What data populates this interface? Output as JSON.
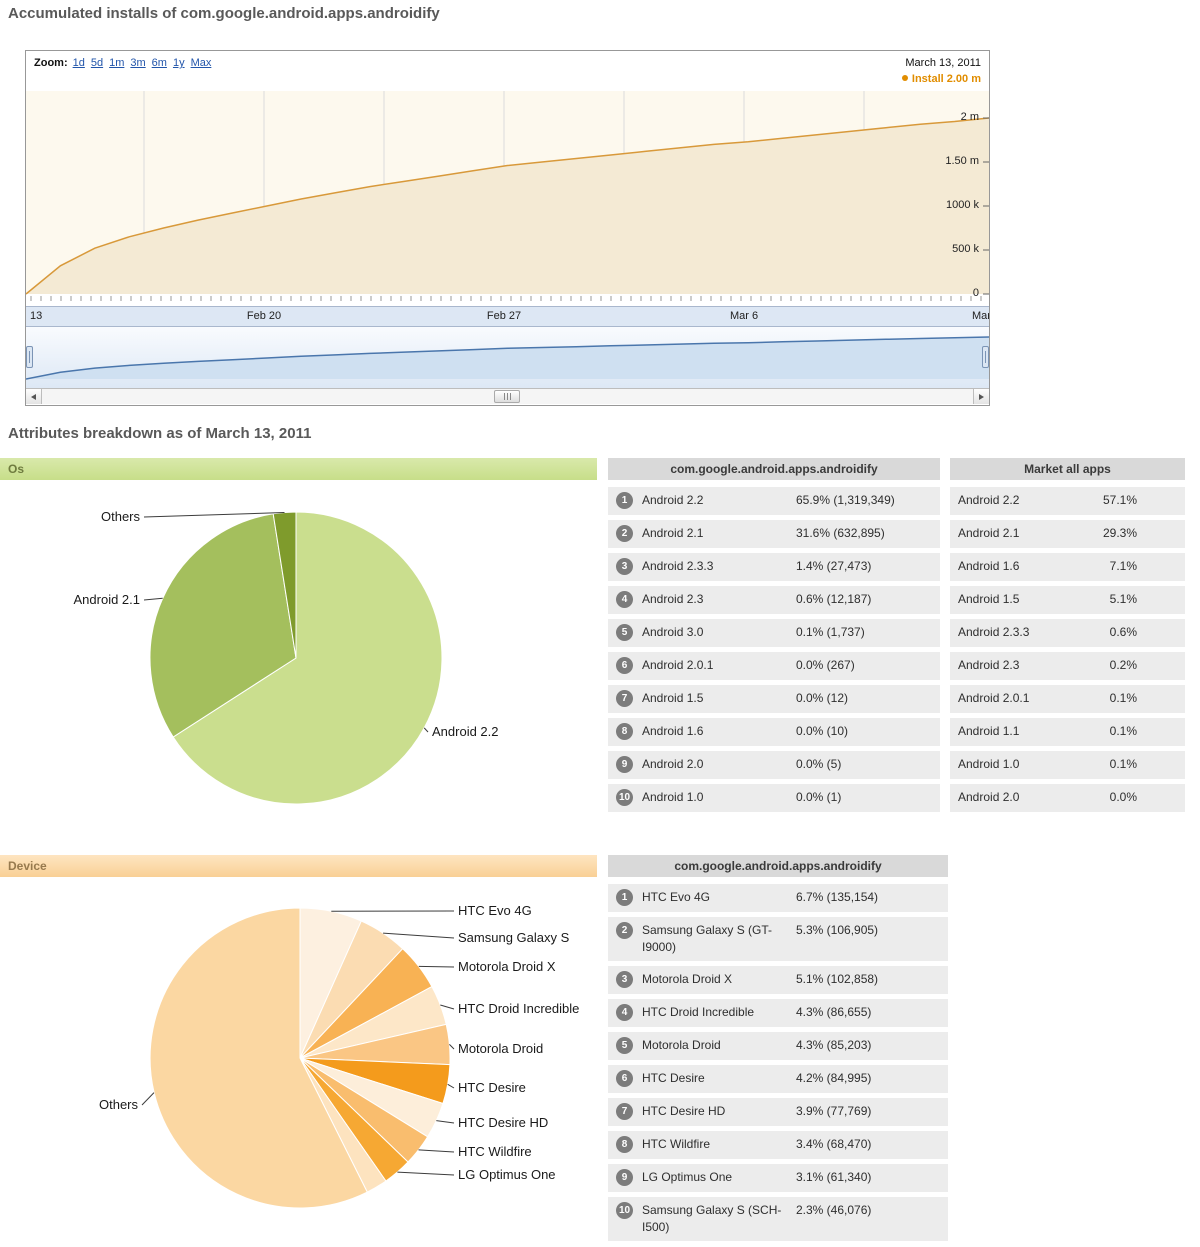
{
  "page": {
    "title": "Accumulated installs of com.google.android.apps.androidify",
    "breakdown_heading": "Attributes breakdown as of March 13, 2011"
  },
  "timeline": {
    "zoom_label": "Zoom:",
    "zoom_options": [
      "1d",
      "5d",
      "1m",
      "3m",
      "6m",
      "1y",
      "Max"
    ],
    "date_label": "March 13, 2011",
    "line_color": "#d8993a",
    "legend_color": "#e18d00"
  },
  "chart_data": [
    {
      "id": "installs-timeline",
      "type": "area",
      "legend": "Install 2.00 m",
      "x_ticks": [
        "13",
        "Feb 20",
        "Feb 27",
        "Mar 6",
        "Mar"
      ],
      "y_ticks": [
        "2 m",
        "1.50 m",
        "1000 k",
        "500 k",
        "0"
      ],
      "y_tick_values_millions": [
        2.0,
        1.5,
        1.0,
        0.5,
        0
      ],
      "ylim_millions": [
        0,
        2.2
      ],
      "series": [
        {
          "name": "Install",
          "unit": "millions of installs (daily, Feb 13 - Mar 13 2011)",
          "values": [
            0,
            0.32,
            0.52,
            0.65,
            0.75,
            0.84,
            0.92,
            1.0,
            1.08,
            1.15,
            1.22,
            1.28,
            1.34,
            1.4,
            1.46,
            1.5,
            1.54,
            1.58,
            1.62,
            1.66,
            1.7,
            1.73,
            1.77,
            1.81,
            1.85,
            1.89,
            1.93,
            1.96,
            2.0
          ]
        }
      ]
    },
    {
      "id": "os-pie",
      "type": "pie",
      "slices": [
        {
          "label": "Android 2.2",
          "pct": 65.9,
          "color": "#cade8e",
          "labeled": true
        },
        {
          "label": "Android 2.1",
          "pct": 31.6,
          "color": "#a4bf5d",
          "labeled": true
        },
        {
          "label": "Others",
          "pct": 2.5,
          "color": "#7f9b2c",
          "labeled": true
        }
      ]
    },
    {
      "id": "device-pie",
      "type": "pie",
      "slices": [
        {
          "label": "HTC Evo 4G",
          "pct": 6.7,
          "color": "#fdf0e0",
          "labeled": true
        },
        {
          "label": "Samsung Galaxy S",
          "pct": 5.3,
          "color": "#fbdcb2",
          "labeled": true
        },
        {
          "label": "Motorola Droid X",
          "pct": 5.1,
          "color": "#f8b254",
          "labeled": true
        },
        {
          "label": "HTC Droid Incredible",
          "pct": 4.3,
          "color": "#fde7c8",
          "labeled": true
        },
        {
          "label": "Motorola Droid",
          "pct": 4.3,
          "color": "#fac684",
          "labeled": true
        },
        {
          "label": "HTC Desire",
          "pct": 4.2,
          "color": "#f49b1c",
          "labeled": true
        },
        {
          "label": "HTC Desire HD",
          "pct": 3.9,
          "color": "#fdeeda",
          "labeled": true
        },
        {
          "label": "HTC Wildfire",
          "pct": 3.4,
          "color": "#f9bd6e",
          "labeled": true
        },
        {
          "label": "LG Optimus One",
          "pct": 3.1,
          "color": "#f6a833",
          "labeled": true
        },
        {
          "label": "Samsung Galaxy S (SCH-I500)",
          "pct": 2.3,
          "color": "#fde3bf",
          "labeled": false
        },
        {
          "label": "Others",
          "pct": 57.4,
          "color": "#fbd7a2",
          "labeled": true
        }
      ]
    }
  ],
  "os_section": {
    "bar_label": "Os",
    "app_table": {
      "header": "com.google.android.apps.androidify",
      "rows": [
        {
          "rank": "1",
          "name": "Android 2.2",
          "value": "65.9% (1,319,349)"
        },
        {
          "rank": "2",
          "name": "Android 2.1",
          "value": "31.6% (632,895)"
        },
        {
          "rank": "3",
          "name": "Android 2.3.3",
          "value": "1.4% (27,473)"
        },
        {
          "rank": "4",
          "name": "Android 2.3",
          "value": "0.6% (12,187)"
        },
        {
          "rank": "5",
          "name": "Android 3.0",
          "value": "0.1% (1,737)"
        },
        {
          "rank": "6",
          "name": "Android 2.0.1",
          "value": "0.0% (267)"
        },
        {
          "rank": "7",
          "name": "Android 1.5",
          "value": "0.0% (12)"
        },
        {
          "rank": "8",
          "name": "Android 1.6",
          "value": "0.0% (10)"
        },
        {
          "rank": "9",
          "name": "Android 2.0",
          "value": "0.0% (5)"
        },
        {
          "rank": "10",
          "name": "Android 1.0",
          "value": "0.0% (1)"
        }
      ]
    },
    "market_table": {
      "header": "Market all apps",
      "rows": [
        {
          "name": "Android 2.2",
          "value": "57.1%"
        },
        {
          "name": "Android 2.1",
          "value": "29.3%"
        },
        {
          "name": "Android 1.6",
          "value": "7.1%"
        },
        {
          "name": "Android 1.5",
          "value": "5.1%"
        },
        {
          "name": "Android 2.3.3",
          "value": "0.6%"
        },
        {
          "name": "Android 2.3",
          "value": "0.2%"
        },
        {
          "name": "Android 2.0.1",
          "value": "0.1%"
        },
        {
          "name": "Android 1.1",
          "value": "0.1%"
        },
        {
          "name": "Android 1.0",
          "value": "0.1%"
        },
        {
          "name": "Android 2.0",
          "value": "0.0%"
        }
      ]
    }
  },
  "device_section": {
    "bar_label": "Device",
    "app_table": {
      "header": "com.google.android.apps.androidify",
      "rows": [
        {
          "rank": "1",
          "name": "HTC Evo 4G",
          "value": "6.7% (135,154)"
        },
        {
          "rank": "2",
          "name": "Samsung Galaxy S (GT-I9000)",
          "value": "5.3% (106,905)"
        },
        {
          "rank": "3",
          "name": "Motorola Droid X",
          "value": "5.1% (102,858)"
        },
        {
          "rank": "4",
          "name": "HTC Droid Incredible",
          "value": "4.3% (86,655)"
        },
        {
          "rank": "5",
          "name": "Motorola Droid",
          "value": "4.3% (85,203)"
        },
        {
          "rank": "6",
          "name": "HTC Desire",
          "value": "4.2% (84,995)"
        },
        {
          "rank": "7",
          "name": "HTC Desire HD",
          "value": "3.9% (77,769)"
        },
        {
          "rank": "8",
          "name": "HTC Wildfire",
          "value": "3.4% (68,470)"
        },
        {
          "rank": "9",
          "name": "LG Optimus One",
          "value": "3.1% (61,340)"
        },
        {
          "rank": "10",
          "name": "Samsung Galaxy S (SCH-I500)",
          "value": "2.3% (46,076)"
        }
      ]
    }
  }
}
